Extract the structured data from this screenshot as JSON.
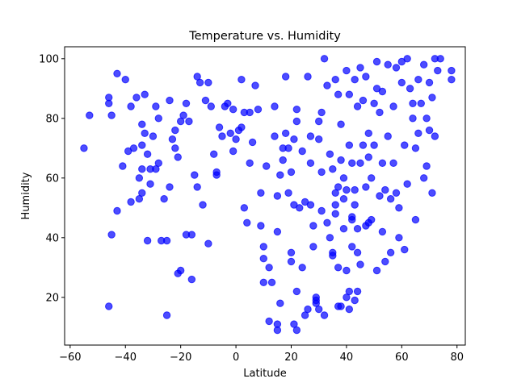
{
  "chart_data": {
    "type": "scatter",
    "title": "Temperature vs. Humidity",
    "xlabel": "Latitude",
    "ylabel": "Humidity",
    "xlim": [
      -62,
      83
    ],
    "ylim": [
      4,
      104
    ],
    "xticks": [
      -60,
      -40,
      -20,
      0,
      20,
      40,
      60,
      80
    ],
    "yticks": [
      20,
      40,
      60,
      80,
      100
    ],
    "grid": false,
    "marker_color": "#0000ff",
    "marker_opacity": 0.7,
    "series": [
      {
        "points": [
          [
            -55,
            70
          ],
          [
            -53,
            81
          ],
          [
            -46,
            87
          ],
          [
            -46,
            85
          ],
          [
            -46,
            17
          ],
          [
            -45,
            41
          ],
          [
            -45,
            81
          ],
          [
            -43,
            49
          ],
          [
            -43,
            95
          ],
          [
            -41,
            64
          ],
          [
            -40,
            93
          ],
          [
            -39,
            69
          ],
          [
            -38,
            52
          ],
          [
            -38,
            84
          ],
          [
            -37,
            70
          ],
          [
            -36,
            87
          ],
          [
            -35,
            53
          ],
          [
            -35,
            60
          ],
          [
            -34,
            71
          ],
          [
            -34,
            55
          ],
          [
            -34,
            63
          ],
          [
            -34,
            78
          ],
          [
            -33,
            88
          ],
          [
            -33,
            75
          ],
          [
            -32,
            39
          ],
          [
            -32,
            68
          ],
          [
            -31,
            58
          ],
          [
            -31,
            63
          ],
          [
            -30,
            74
          ],
          [
            -29,
            84
          ],
          [
            -29,
            63
          ],
          [
            -28,
            80
          ],
          [
            -28,
            65
          ],
          [
            -27,
            39
          ],
          [
            -26,
            53
          ],
          [
            -25,
            14
          ],
          [
            -25,
            39
          ],
          [
            -24,
            57
          ],
          [
            -24,
            86
          ],
          [
            -23,
            73
          ],
          [
            -22,
            76
          ],
          [
            -22,
            70
          ],
          [
            -21,
            67
          ],
          [
            -21,
            28
          ],
          [
            -20,
            29
          ],
          [
            -20,
            79
          ],
          [
            -19,
            81
          ],
          [
            -18,
            85
          ],
          [
            -18,
            41
          ],
          [
            -17,
            79
          ],
          [
            -16,
            41
          ],
          [
            -16,
            26
          ],
          [
            -15,
            61
          ],
          [
            -14,
            57
          ],
          [
            -14,
            94
          ],
          [
            -13,
            92
          ],
          [
            -12,
            51
          ],
          [
            -11,
            86
          ],
          [
            -10,
            38
          ],
          [
            -10,
            92
          ],
          [
            -9,
            84
          ],
          [
            -8,
            68
          ],
          [
            -7,
            62
          ],
          [
            -7,
            61
          ],
          [
            -6,
            77
          ],
          [
            -5,
            74
          ],
          [
            -4,
            84
          ],
          [
            -3,
            85
          ],
          [
            -2,
            75
          ],
          [
            -1,
            83
          ],
          [
            -1,
            69
          ],
          [
            0,
            73
          ],
          [
            1,
            76
          ],
          [
            2,
            77
          ],
          [
            2,
            93
          ],
          [
            3,
            50
          ],
          [
            3,
            82
          ],
          [
            4,
            45
          ],
          [
            5,
            65
          ],
          [
            5,
            82
          ],
          [
            6,
            72
          ],
          [
            7,
            91
          ],
          [
            8,
            83
          ],
          [
            9,
            55
          ],
          [
            9,
            44
          ],
          [
            10,
            37
          ],
          [
            10,
            33
          ],
          [
            10,
            25
          ],
          [
            11,
            64
          ],
          [
            12,
            30
          ],
          [
            12,
            12
          ],
          [
            13,
            25
          ],
          [
            14,
            84
          ],
          [
            14,
            74
          ],
          [
            15,
            54
          ],
          [
            15,
            42
          ],
          [
            15,
            11
          ],
          [
            15,
            9
          ],
          [
            16,
            18
          ],
          [
            16,
            61
          ],
          [
            17,
            66
          ],
          [
            17,
            70
          ],
          [
            18,
            75
          ],
          [
            18,
            94
          ],
          [
            19,
            70
          ],
          [
            19,
            55
          ],
          [
            20,
            35
          ],
          [
            20,
            32
          ],
          [
            20,
            62
          ],
          [
            21,
            11
          ],
          [
            21,
            51
          ],
          [
            21,
            73
          ],
          [
            22,
            9
          ],
          [
            22,
            22
          ],
          [
            22,
            79
          ],
          [
            22,
            83
          ],
          [
            23,
            50
          ],
          [
            24,
            69
          ],
          [
            24,
            30
          ],
          [
            25,
            52
          ],
          [
            25,
            14
          ],
          [
            26,
            16
          ],
          [
            26,
            94
          ],
          [
            27,
            51
          ],
          [
            27,
            65
          ],
          [
            27,
            74
          ],
          [
            28,
            44
          ],
          [
            28,
            37
          ],
          [
            29,
            18
          ],
          [
            29,
            20
          ],
          [
            29,
            19
          ],
          [
            30,
            16
          ],
          [
            30,
            79
          ],
          [
            30,
            73
          ],
          [
            31,
            82
          ],
          [
            31,
            62
          ],
          [
            31,
            49
          ],
          [
            32,
            14
          ],
          [
            32,
            100
          ],
          [
            33,
            91
          ],
          [
            33,
            45
          ],
          [
            34,
            40
          ],
          [
            34,
            68
          ],
          [
            35,
            34
          ],
          [
            35,
            35
          ],
          [
            35,
            63
          ],
          [
            36,
            48
          ],
          [
            36,
            51
          ],
          [
            36,
            55
          ],
          [
            36,
            93
          ],
          [
            37,
            30
          ],
          [
            37,
            17
          ],
          [
            37,
            57
          ],
          [
            37,
            88
          ],
          [
            38,
            78
          ],
          [
            38,
            66
          ],
          [
            38,
            17
          ],
          [
            39,
            60
          ],
          [
            39,
            53
          ],
          [
            39,
            43
          ],
          [
            40,
            96
          ],
          [
            40,
            20
          ],
          [
            40,
            29
          ],
          [
            40,
            56
          ],
          [
            41,
            16
          ],
          [
            41,
            71
          ],
          [
            41,
            22
          ],
          [
            41,
            88
          ],
          [
            42,
            65
          ],
          [
            42,
            46
          ],
          [
            42,
            47
          ],
          [
            42,
            37
          ],
          [
            43,
            51
          ],
          [
            43,
            19
          ],
          [
            43,
            56
          ],
          [
            43,
            93
          ],
          [
            44,
            22
          ],
          [
            44,
            43
          ],
          [
            44,
            35
          ],
          [
            44,
            84
          ],
          [
            45,
            97
          ],
          [
            45,
            31
          ],
          [
            45,
            65
          ],
          [
            46,
            86
          ],
          [
            46,
            71
          ],
          [
            47,
            44
          ],
          [
            47,
            57
          ],
          [
            47,
            94
          ],
          [
            48,
            45
          ],
          [
            48,
            75
          ],
          [
            48,
            67
          ],
          [
            49,
            60
          ],
          [
            49,
            46
          ],
          [
            50,
            85
          ],
          [
            50,
            71
          ],
          [
            51,
            99
          ],
          [
            51,
            90
          ],
          [
            51,
            29
          ],
          [
            52,
            54
          ],
          [
            52,
            82
          ],
          [
            53,
            89
          ],
          [
            53,
            42
          ],
          [
            53,
            65
          ],
          [
            54,
            32
          ],
          [
            54,
            56
          ],
          [
            55,
            98
          ],
          [
            55,
            74
          ],
          [
            56,
            35
          ],
          [
            56,
            53
          ],
          [
            57,
            65
          ],
          [
            57,
            84
          ],
          [
            58,
            97
          ],
          [
            58,
            55
          ],
          [
            59,
            50
          ],
          [
            59,
            40
          ],
          [
            60,
            99
          ],
          [
            60,
            92
          ],
          [
            61,
            71
          ],
          [
            61,
            36
          ],
          [
            62,
            100
          ],
          [
            62,
            58
          ],
          [
            63,
            90
          ],
          [
            64,
            85
          ],
          [
            64,
            80
          ],
          [
            65,
            46
          ],
          [
            65,
            70
          ],
          [
            66,
            93
          ],
          [
            66,
            75
          ],
          [
            67,
            85
          ],
          [
            68,
            98
          ],
          [
            68,
            60
          ],
          [
            69,
            80
          ],
          [
            69,
            64
          ],
          [
            70,
            76
          ],
          [
            70,
            92
          ],
          [
            71,
            87
          ],
          [
            71,
            55
          ],
          [
            72,
            100
          ],
          [
            72,
            74
          ],
          [
            73,
            96
          ],
          [
            74,
            100
          ],
          [
            78,
            96
          ],
          [
            78,
            93
          ]
        ]
      }
    ]
  }
}
